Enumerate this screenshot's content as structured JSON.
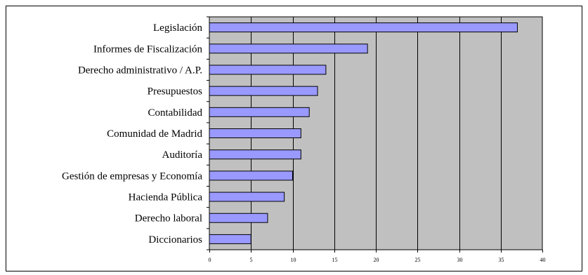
{
  "chart_data": {
    "type": "bar",
    "orientation": "horizontal",
    "title": "",
    "xlabel": "",
    "ylabel": "",
    "categories": [
      "Legislación",
      "Informes de Fiscalización",
      "Derecho administrativo / A.P.",
      "Presupuestos",
      "Contabilidad",
      "Comunidad de Madrid",
      "Auditoría",
      "Gestión de empresas y Economía",
      "Hacienda Pública",
      "Derecho laboral",
      "Diccionarios"
    ],
    "values": [
      37,
      19,
      14,
      13,
      12,
      11,
      11,
      10,
      9,
      7,
      5
    ],
    "xlim": [
      0,
      40
    ],
    "x_ticks": [
      "0",
      "5",
      "10",
      "15",
      "20",
      "25",
      "30",
      "35",
      "40"
    ],
    "x_tick_values": [
      0,
      5,
      10,
      15,
      20,
      25,
      30,
      35,
      40
    ],
    "grid": "vertical",
    "legend": "none",
    "colors": {
      "bar_fill": "#9999ff",
      "bar_stroke": "#000000",
      "plot_background": "#c0c0c0",
      "gridline": "#000000",
      "chart_background": "#ffffff"
    }
  }
}
